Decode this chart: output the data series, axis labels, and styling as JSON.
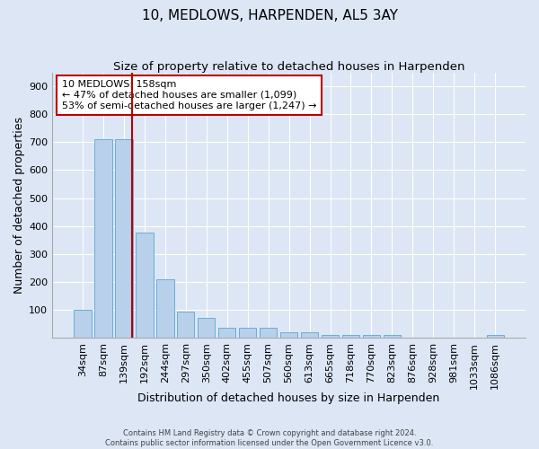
{
  "title": "10, MEDLOWS, HARPENDEN, AL5 3AY",
  "subtitle": "Size of property relative to detached houses in Harpenden",
  "xlabel": "Distribution of detached houses by size in Harpenden",
  "ylabel": "Number of detached properties",
  "bar_labels": [
    "34sqm",
    "87sqm",
    "139sqm",
    "192sqm",
    "244sqm",
    "297sqm",
    "350sqm",
    "402sqm",
    "455sqm",
    "507sqm",
    "560sqm",
    "613sqm",
    "665sqm",
    "718sqm",
    "770sqm",
    "823sqm",
    "876sqm",
    "928sqm",
    "981sqm",
    "1033sqm",
    "1086sqm"
  ],
  "bar_values": [
    100,
    710,
    710,
    375,
    210,
    95,
    70,
    35,
    35,
    35,
    20,
    20,
    10,
    10,
    10,
    10,
    0,
    0,
    0,
    0,
    10
  ],
  "bar_color": "#b8d0ea",
  "bar_edge_color": "#6aaed6",
  "red_line_x": 2.4,
  "annotation_text": "10 MEDLOWS: 158sqm\n← 47% of detached houses are smaller (1,099)\n53% of semi-detached houses are larger (1,247) →",
  "annotation_box_color": "#ffffff",
  "annotation_box_edge_color": "#bb0000",
  "ylim": [
    0,
    950
  ],
  "yticks": [
    0,
    100,
    200,
    300,
    400,
    500,
    600,
    700,
    800,
    900
  ],
  "bg_color": "#dce6f5",
  "fig_bg_color": "#dce6f5",
  "title_fontsize": 11,
  "subtitle_fontsize": 9.5,
  "xlabel_fontsize": 9,
  "ylabel_fontsize": 9,
  "tick_fontsize": 8,
  "annot_fontsize": 8
}
